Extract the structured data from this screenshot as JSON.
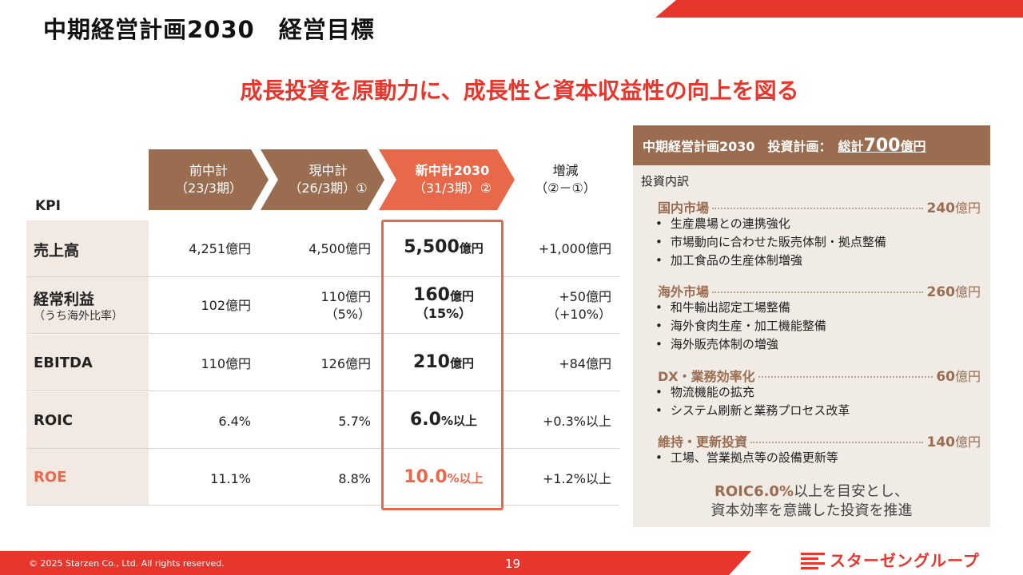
{
  "title": "中期経営計画2030　経営目標",
  "headline": "成長投資を原動力に、成長性と資本収益性の向上を図る",
  "kpi_header": "KPI",
  "columns": [
    {
      "line1": "前中計",
      "line2": "（23/3期）"
    },
    {
      "line1": "現中計",
      "line2": "（26/3期）①"
    },
    {
      "line1": "新中計2030",
      "line2": "（31/3期）②"
    }
  ],
  "delta_header": {
    "line1": "増減",
    "line2": "（②－①）"
  },
  "rows": [
    {
      "label": "売上高",
      "sub": "",
      "prev": "4,251億円",
      "curr": "4,500億円",
      "curr_sub": "",
      "target_num": "5,500",
      "target_unit": "億円",
      "target_sub": "",
      "delta": "+1,000億円",
      "delta_sub": ""
    },
    {
      "label": "経常利益",
      "sub": "（うち海外比率）",
      "prev": "102億円",
      "curr": "110億円",
      "curr_sub": "（5%）",
      "target_num": "160",
      "target_unit": "億円",
      "target_sub": "（15%）",
      "delta": "+50億円",
      "delta_sub": "（+10%）"
    },
    {
      "label": "EBITDA",
      "sub": "",
      "prev": "110億円",
      "curr": "126億円",
      "curr_sub": "",
      "target_num": "210",
      "target_unit": "億円",
      "target_sub": "",
      "delta": "+84億円",
      "delta_sub": ""
    },
    {
      "label": "ROIC",
      "sub": "",
      "prev": "6.4%",
      "curr": "5.7%",
      "curr_sub": "",
      "target_num": "6.0",
      "target_unit": "%以上",
      "target_sub": "",
      "delta": "+0.3%以上",
      "delta_sub": ""
    },
    {
      "label": "ROE",
      "sub": "",
      "prev": "11.1%",
      "curr": "8.8%",
      "curr_sub": "",
      "target_num": "10.0",
      "target_unit": "%以上",
      "target_sub": "",
      "delta": "+1.2%以上",
      "delta_sub": ""
    }
  ],
  "investment": {
    "header": "中期経営計画2030　投資計画：",
    "total_prefix": "総計",
    "total_num": "700",
    "total_unit": "億円",
    "breakdown_label": "投資内訳",
    "categories": [
      {
        "name": "国内市場",
        "amount": "240",
        "unit": "億円",
        "items": [
          "生産農場との連携強化",
          "市場動向に合わせた販売体制・拠点整備",
          "加工食品の生産体制増強"
        ]
      },
      {
        "name": "海外市場",
        "amount": "260",
        "unit": "億円",
        "items": [
          "和牛輸出認定工場整備",
          "海外食肉生産・加工機能整備",
          "海外販売体制の増強"
        ]
      },
      {
        "name": "DX・業務効率化",
        "amount": "60",
        "unit": "億円",
        "items": [
          "物流機能の拡充",
          "システム刷新と業務プロセス改革"
        ]
      },
      {
        "name": "維持・更新投資",
        "amount": "140",
        "unit": "億円",
        "items": [
          "工場、営業拠点等の設備更新等"
        ]
      }
    ],
    "closing_hl": "ROIC6.0%",
    "closing_rest": "以上を目安とし、",
    "closing_line2": "資本効率を意識した投資を推進"
  },
  "footer": {
    "copyright": "© 2025 Starzen Co., Ltd. All rights reserved.",
    "page": "19",
    "logo": "スターゼングループ"
  },
  "colors": {
    "accent": "#e8362d",
    "brown": "#9b6d50",
    "orange": "#e8694a",
    "panel_bg": "#f1ebe6"
  }
}
